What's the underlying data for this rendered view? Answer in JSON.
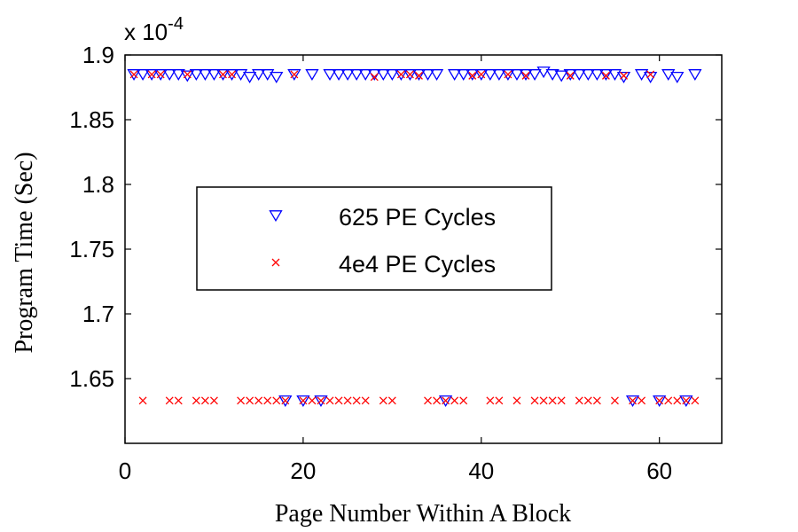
{
  "chart_data": {
    "type": "scatter",
    "title": "",
    "xlabel": "Page Number Within A Block",
    "ylabel": "Program Time (Sec)",
    "y_multiplier_prefix": "x 10",
    "y_multiplier_exponent": "-4",
    "xlim": [
      0,
      67
    ],
    "ylim": [
      1.6,
      1.9
    ],
    "x_ticks": [
      0,
      20,
      40,
      60
    ],
    "x_tick_labels": [
      "0",
      "20",
      "40",
      "60"
    ],
    "y_ticks": [
      1.65,
      1.7,
      1.75,
      1.8,
      1.85,
      1.9
    ],
    "y_tick_labels": [
      "1.65",
      "1.7",
      "1.75",
      "1.8",
      "1.85",
      "1.9"
    ],
    "grid": false,
    "legend_position": "center-left",
    "series": [
      {
        "name": "625 PE Cycles",
        "marker": "triangle-down",
        "color": "#0000ff",
        "points": [
          [
            1,
            1.885
          ],
          [
            2,
            1.885
          ],
          [
            3,
            1.885
          ],
          [
            4,
            1.885
          ],
          [
            5,
            1.885
          ],
          [
            6,
            1.885
          ],
          [
            7,
            1.884
          ],
          [
            8,
            1.885
          ],
          [
            9,
            1.885
          ],
          [
            10,
            1.885
          ],
          [
            11,
            1.885
          ],
          [
            12,
            1.885
          ],
          [
            13,
            1.885
          ],
          [
            14,
            1.883
          ],
          [
            15,
            1.885
          ],
          [
            16,
            1.885
          ],
          [
            17,
            1.883
          ],
          [
            18,
            1.633
          ],
          [
            19,
            1.885
          ],
          [
            20,
            1.633
          ],
          [
            21,
            1.885
          ],
          [
            22,
            1.633
          ],
          [
            23,
            1.885
          ],
          [
            24,
            1.885
          ],
          [
            25,
            1.885
          ],
          [
            26,
            1.885
          ],
          [
            27,
            1.885
          ],
          [
            28,
            1.885
          ],
          [
            29,
            1.885
          ],
          [
            30,
            1.885
          ],
          [
            31,
            1.885
          ],
          [
            32,
            1.885
          ],
          [
            33,
            1.885
          ],
          [
            34,
            1.885
          ],
          [
            35,
            1.885
          ],
          [
            36,
            1.633
          ],
          [
            37,
            1.885
          ],
          [
            38,
            1.885
          ],
          [
            39,
            1.885
          ],
          [
            40,
            1.885
          ],
          [
            41,
            1.885
          ],
          [
            42,
            1.885
          ],
          [
            43,
            1.885
          ],
          [
            44,
            1.885
          ],
          [
            45,
            1.885
          ],
          [
            46,
            1.885
          ],
          [
            47,
            1.887
          ],
          [
            48,
            1.885
          ],
          [
            49,
            1.884
          ],
          [
            50,
            1.885
          ],
          [
            51,
            1.885
          ],
          [
            52,
            1.885
          ],
          [
            53,
            1.885
          ],
          [
            54,
            1.885
          ],
          [
            55,
            1.885
          ],
          [
            56,
            1.883
          ],
          [
            57,
            1.633
          ],
          [
            58,
            1.885
          ],
          [
            59,
            1.883
          ],
          [
            60,
            1.633
          ],
          [
            61,
            1.885
          ],
          [
            62,
            1.883
          ],
          [
            63,
            1.633
          ],
          [
            64,
            1.885
          ]
        ]
      },
      {
        "name": "4e4 PE Cycles",
        "marker": "x",
        "color": "#ff0000",
        "points": [
          [
            1,
            1.885
          ],
          [
            2,
            1.633
          ],
          [
            3,
            1.885
          ],
          [
            4,
            1.885
          ],
          [
            5,
            1.633
          ],
          [
            6,
            1.633
          ],
          [
            7,
            1.885
          ],
          [
            8,
            1.633
          ],
          [
            9,
            1.633
          ],
          [
            10,
            1.633
          ],
          [
            11,
            1.885
          ],
          [
            12,
            1.885
          ],
          [
            13,
            1.633
          ],
          [
            14,
            1.633
          ],
          [
            15,
            1.633
          ],
          [
            16,
            1.633
          ],
          [
            17,
            1.633
          ],
          [
            18,
            1.633
          ],
          [
            19,
            1.885
          ],
          [
            20,
            1.633
          ],
          [
            21,
            1.633
          ],
          [
            22,
            1.633
          ],
          [
            23,
            1.633
          ],
          [
            24,
            1.633
          ],
          [
            25,
            1.633
          ],
          [
            26,
            1.633
          ],
          [
            27,
            1.633
          ],
          [
            28,
            1.883
          ],
          [
            29,
            1.633
          ],
          [
            30,
            1.633
          ],
          [
            31,
            1.885
          ],
          [
            32,
            1.885
          ],
          [
            33,
            1.884
          ],
          [
            34,
            1.633
          ],
          [
            35,
            1.633
          ],
          [
            36,
            1.633
          ],
          [
            37,
            1.633
          ],
          [
            38,
            1.633
          ],
          [
            39,
            1.884
          ],
          [
            40,
            1.885
          ],
          [
            41,
            1.633
          ],
          [
            42,
            1.633
          ],
          [
            43,
            1.885
          ],
          [
            44,
            1.633
          ],
          [
            45,
            1.884
          ],
          [
            46,
            1.633
          ],
          [
            47,
            1.633
          ],
          [
            48,
            1.633
          ],
          [
            49,
            1.633
          ],
          [
            50,
            1.884
          ],
          [
            51,
            1.633
          ],
          [
            52,
            1.633
          ],
          [
            53,
            1.633
          ],
          [
            54,
            1.884
          ],
          [
            55,
            1.633
          ],
          [
            56,
            1.884
          ],
          [
            57,
            1.633
          ],
          [
            58,
            1.633
          ],
          [
            59,
            1.885
          ],
          [
            60,
            1.633
          ],
          [
            61,
            1.633
          ],
          [
            62,
            1.633
          ],
          [
            63,
            1.633
          ],
          [
            64,
            1.633
          ]
        ]
      }
    ]
  }
}
